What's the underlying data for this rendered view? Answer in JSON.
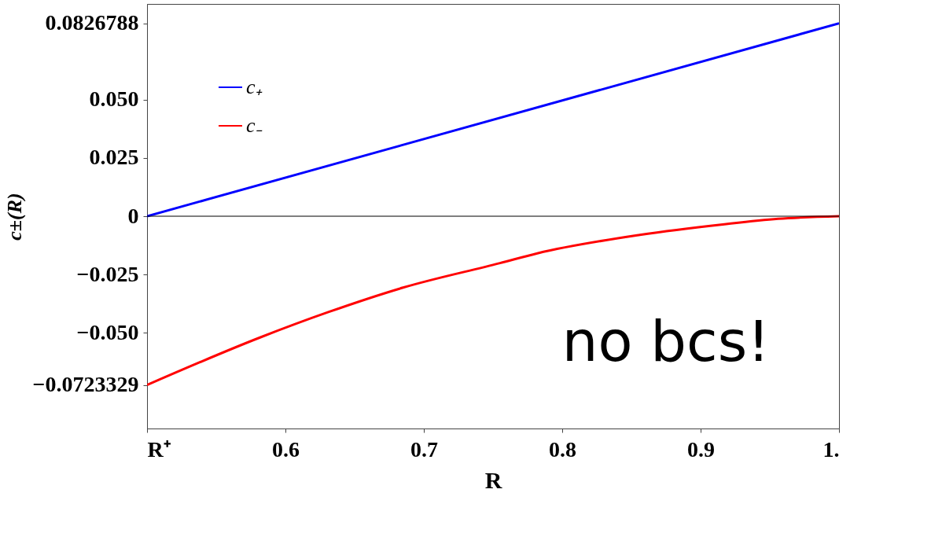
{
  "chart_data": {
    "type": "line",
    "xlabel": "R",
    "ylabel": "c±(R)",
    "xlim": [
      0.5,
      1.0
    ],
    "ylim": [
      -0.091,
      0.091
    ],
    "xticks": [
      {
        "value": 0.5,
        "label": "R⁺"
      },
      0.6,
      0.7,
      0.8,
      0.9,
      {
        "value": 1.0,
        "label": "1."
      }
    ],
    "yticks": [
      {
        "value": 0.0826788,
        "label": "0.0826788"
      },
      {
        "value": 0.05,
        "label": "0.050"
      },
      {
        "value": 0.025,
        "label": "0.025"
      },
      {
        "value": 0,
        "label": "0"
      },
      {
        "value": -0.025,
        "label": "−0.025"
      },
      {
        "value": -0.05,
        "label": "−0.050"
      },
      {
        "value": -0.0723329,
        "label": "−0.0723329"
      }
    ],
    "series": [
      {
        "name": "c₊",
        "color": "#0000ff",
        "x": [
          0.5,
          1.0
        ],
        "values": [
          0,
          0.0826788
        ]
      },
      {
        "name": "c₋",
        "color": "#ff0000",
        "x": [
          0.5,
          0.582,
          0.631,
          0.685,
          0.755,
          0.782,
          0.856,
          0.916,
          0.956,
          1.0
        ],
        "values": [
          -0.0723329,
          -0.0519,
          -0.0411,
          -0.0306,
          -0.0201,
          -0.0159,
          -0.008,
          -0.0035,
          -0.0011,
          0
        ]
      }
    ],
    "ref_lines": [
      {
        "axis": "y",
        "value": 0,
        "color": "#000000"
      }
    ],
    "annotations": [
      "no bcs!"
    ],
    "legend": "top left",
    "grid": false,
    "line_style": "solid",
    "marker": "none"
  }
}
